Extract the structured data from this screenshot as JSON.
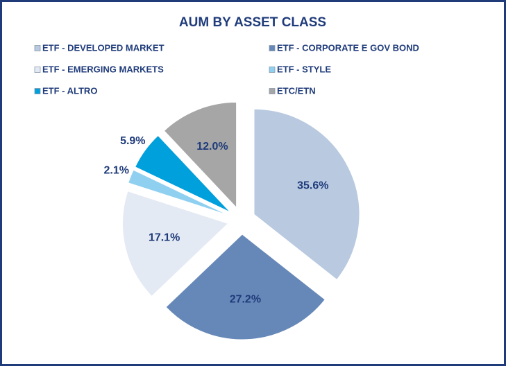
{
  "chart_data": {
    "type": "pie",
    "title": "AUM BY ASSET CLASS",
    "categories": [
      "ETF - DEVELOPED MARKET",
      "ETF - CORPORATE E GOV BOND",
      "ETF - EMERGING MARKETS",
      "ETF - STYLE",
      "ETF - ALTRO",
      "ETC/ETN"
    ],
    "values": [
      35.6,
      27.2,
      17.1,
      2.1,
      5.9,
      12.0
    ],
    "value_labels": [
      "35.6%",
      "27.2%",
      "17.1%",
      "2.1%",
      "5.9%",
      "12.0%"
    ],
    "colors": [
      "#b8c9e0",
      "#6688b8",
      "#e4eaf4",
      "#8fd0f0",
      "#00a0dc",
      "#a6a6a6"
    ]
  }
}
